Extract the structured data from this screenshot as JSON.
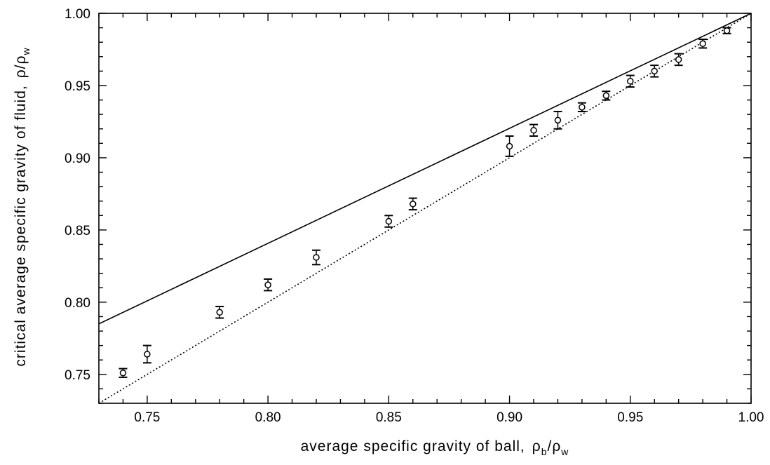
{
  "chart_data": {
    "type": "scatter",
    "xlabel": "average specific gravity of ball,",
    "xlabel_symbol": {
      "rho": "ρ",
      "num_sub": "b",
      "slash": "/",
      "den_sub": "w"
    },
    "ylabel": "critical average specific gravity of fluid,",
    "ylabel_symbol": {
      "rho": "ρ",
      "slash": "/",
      "den_sub": "w"
    },
    "xlim": [
      0.73,
      1.0
    ],
    "ylim": [
      0.73,
      1.0
    ],
    "x_ticks": [
      "0.75",
      "0.80",
      "0.85",
      "0.90",
      "0.95",
      "1.00"
    ],
    "y_ticks": [
      "0.75",
      "0.80",
      "0.85",
      "0.90",
      "0.95",
      "1.00"
    ],
    "grid": false,
    "series": [
      {
        "style": "open-circle-with-error-bars",
        "points": [
          {
            "x": 0.74,
            "y": 0.751,
            "err": 0.003
          },
          {
            "x": 0.75,
            "y": 0.764,
            "err": 0.006
          },
          {
            "x": 0.78,
            "y": 0.793,
            "err": 0.004
          },
          {
            "x": 0.8,
            "y": 0.812,
            "err": 0.004
          },
          {
            "x": 0.82,
            "y": 0.831,
            "err": 0.005
          },
          {
            "x": 0.85,
            "y": 0.856,
            "err": 0.004
          },
          {
            "x": 0.86,
            "y": 0.868,
            "err": 0.004
          },
          {
            "x": 0.9,
            "y": 0.908,
            "err": 0.007
          },
          {
            "x": 0.91,
            "y": 0.919,
            "err": 0.004
          },
          {
            "x": 0.92,
            "y": 0.926,
            "err": 0.006
          },
          {
            "x": 0.93,
            "y": 0.935,
            "err": 0.003
          },
          {
            "x": 0.94,
            "y": 0.943,
            "err": 0.003
          },
          {
            "x": 0.95,
            "y": 0.953,
            "err": 0.004
          },
          {
            "x": 0.96,
            "y": 0.96,
            "err": 0.004
          },
          {
            "x": 0.97,
            "y": 0.968,
            "err": 0.004
          },
          {
            "x": 0.98,
            "y": 0.979,
            "err": 0.003
          },
          {
            "x": 0.99,
            "y": 0.988,
            "err": 0.002
          }
        ]
      },
      {
        "style": "solid-line",
        "points": [
          {
            "x": 0.73,
            "y": 0.785
          },
          {
            "x": 1.0,
            "y": 1.0
          }
        ]
      },
      {
        "style": "dotted-line",
        "points": [
          {
            "x": 0.73,
            "y": 0.73
          },
          {
            "x": 1.0,
            "y": 1.0
          }
        ]
      }
    ],
    "colors": {
      "ink": "#000000",
      "background": "#ffffff"
    }
  }
}
